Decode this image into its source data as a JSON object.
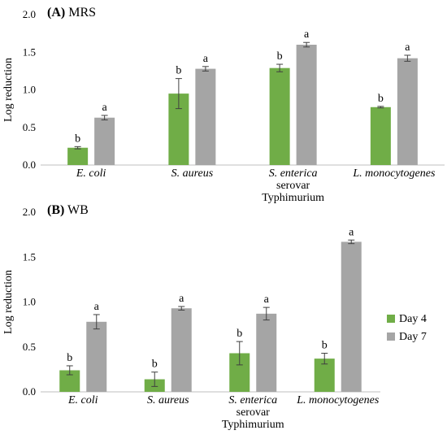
{
  "chart_data": [
    {
      "type": "bar",
      "title_label": "(A)",
      "title": "MRS",
      "ylabel": "Log reduction",
      "ylim": [
        0,
        2.0
      ],
      "yticks": [
        "0.0",
        "0.5",
        "1.0",
        "1.5",
        "2.0"
      ],
      "categories": [
        [
          "E. coli"
        ],
        [
          "S. aureus"
        ],
        [
          "S. enterica",
          "serovar",
          "Typhimurium"
        ],
        [
          "L. monocytogenes"
        ]
      ],
      "series": [
        {
          "name": "Day 4",
          "color": "#70ad47",
          "values": [
            0.23,
            0.95,
            1.29,
            0.77
          ],
          "errors": [
            0.015,
            0.2,
            0.05,
            0.01
          ],
          "letters": [
            "b",
            "b",
            "b",
            "b"
          ]
        },
        {
          "name": "Day 7",
          "color": "#a5a5a5",
          "values": [
            0.63,
            1.28,
            1.6,
            1.42
          ],
          "errors": [
            0.03,
            0.03,
            0.03,
            0.04
          ],
          "letters": [
            "a",
            "a",
            "a",
            "a"
          ]
        }
      ]
    },
    {
      "type": "bar",
      "title_label": "(B)",
      "title": "WB",
      "ylabel": "Log reduction",
      "ylim": [
        0,
        2.0
      ],
      "yticks": [
        "0.0",
        "0.5",
        "1.0",
        "1.5",
        "2.0"
      ],
      "categories": [
        [
          "E. coli"
        ],
        [
          "S. aureus"
        ],
        [
          "S. enterica",
          "serovar",
          "Typhimurium"
        ],
        [
          "L. monocytogenes"
        ]
      ],
      "series": [
        {
          "name": "Day 4",
          "color": "#70ad47",
          "values": [
            0.24,
            0.14,
            0.43,
            0.37
          ],
          "errors": [
            0.05,
            0.08,
            0.13,
            0.06
          ],
          "letters": [
            "b",
            "b",
            "b",
            "b"
          ]
        },
        {
          "name": "Day 7",
          "color": "#a5a5a5",
          "values": [
            0.78,
            0.93,
            0.87,
            1.67
          ],
          "errors": [
            0.08,
            0.02,
            0.07,
            0.02
          ],
          "letters": [
            "a",
            "a",
            "a",
            "a"
          ]
        }
      ],
      "legend": {
        "position": "right",
        "entries": [
          "Day 4",
          "Day 7"
        ]
      }
    }
  ]
}
